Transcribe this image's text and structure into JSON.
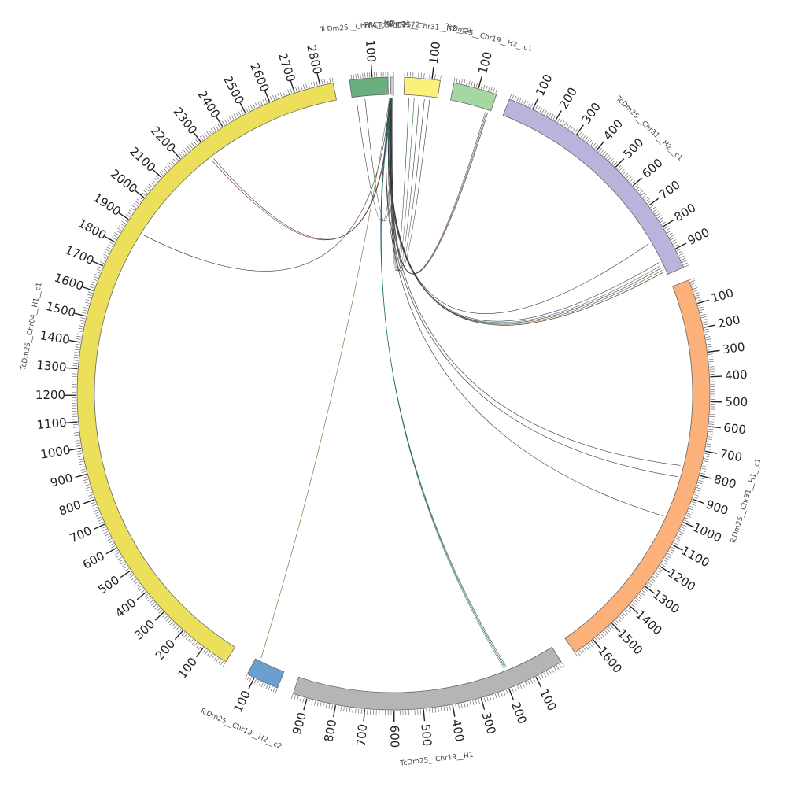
{
  "diagram": {
    "type": "circos",
    "center_marker_label": "PRCTcDm01172",
    "segments": [
      {
        "id": "chr04_h1_c1",
        "label": "TcDm25__Chr04__H1__c1",
        "length": 2850,
        "color": "#ECE05A",
        "major_ticks": [
          100,
          200,
          300,
          400,
          500,
          600,
          700,
          800,
          900,
          1000,
          1100,
          1200,
          1300,
          1400,
          1500,
          1600,
          1700,
          1800,
          1900,
          2000,
          2100,
          2200,
          2300,
          2400,
          2500,
          2600,
          2700,
          2800
        ]
      },
      {
        "id": "chr04_h2",
        "label": "TcDm25__Chr04__H2__c2",
        "length": 170,
        "color": "#6BAF7E",
        "major_ticks": [
          100
        ]
      },
      {
        "id": "prc",
        "label": "PRCTcDm01172",
        "length": 4,
        "color": "#CFCFCF",
        "major_ticks": []
      },
      {
        "id": "chr31_h2_c2",
        "label": "TcDm25__Chr31__H2__c2",
        "length": 130,
        "color": "#FAF07A",
        "major_ticks": [
          100
        ]
      },
      {
        "id": "chr19_h2_c1",
        "label": "TcDm25__Chr19__H2__c1",
        "length": 175,
        "color": "#A4D7A1",
        "major_ticks": [
          100
        ]
      },
      {
        "id": "chr31_h2_c1",
        "label": "TcDm25__Chr31__H2__c1",
        "length": 980,
        "color": "#B8B4DB",
        "major_ticks": [
          100,
          200,
          300,
          400,
          500,
          600,
          700,
          800,
          900
        ]
      },
      {
        "id": "chr31_h1_c1",
        "label": "TcDm25__Chr31__H1__c1",
        "length": 1690,
        "color": "#FCB07A",
        "major_ticks": [
          100,
          200,
          300,
          400,
          500,
          600,
          700,
          800,
          900,
          1000,
          1100,
          1200,
          1300,
          1400,
          1500,
          1600
        ]
      },
      {
        "id": "chr19_h1",
        "label": "TcDm25__Chr19__H1",
        "length": 950,
        "color": "#B5B5B5",
        "major_ticks": [
          100,
          200,
          300,
          400,
          500,
          600,
          700,
          800,
          900
        ]
      },
      {
        "id": "chr19_h2_c2",
        "label": "TcDm25__Chr19__H2__c2",
        "length": 130,
        "color": "#6A9FCF",
        "major_ticks": [
          100
        ]
      }
    ],
    "links": [
      {
        "seg": "chr04_h1_c1",
        "pos": 1880,
        "color": "#333333"
      },
      {
        "seg": "chr04_h1_c1",
        "pos": 2290,
        "color": "#8A2A2A"
      },
      {
        "seg": "chr04_h1_c1",
        "pos": 2300,
        "color": "#333333"
      },
      {
        "seg": "chr04_h2",
        "pos": 20,
        "color": "#333333"
      },
      {
        "seg": "chr04_h2",
        "pos": 60,
        "color": "#333333"
      },
      {
        "seg": "chr31_h2_c2",
        "pos": 20,
        "color": "#333333"
      },
      {
        "seg": "chr31_h2_c2",
        "pos": 40,
        "color": "#2A6A2A"
      },
      {
        "seg": "chr31_h2_c2",
        "pos": 60,
        "color": "#333333"
      },
      {
        "seg": "chr31_h2_c2",
        "pos": 80,
        "color": "#333333"
      },
      {
        "seg": "chr31_h2_c2",
        "pos": 100,
        "color": "#333333"
      },
      {
        "seg": "chr19_h2_c1",
        "pos": 155,
        "color": "#8A2A2A"
      },
      {
        "seg": "chr19_h2_c1",
        "pos": 160,
        "color": "#2A5A8A"
      },
      {
        "seg": "chr19_h2_c1",
        "pos": 165,
        "color": "#333333"
      },
      {
        "seg": "chr31_h2_c1",
        "pos": 830,
        "color": "#333333"
      },
      {
        "seg": "chr31_h2_c1",
        "pos": 920,
        "color": "#333333"
      },
      {
        "seg": "chr31_h2_c1",
        "pos": 935,
        "color": "#2A6A8A"
      },
      {
        "seg": "chr31_h2_c1",
        "pos": 945,
        "color": "#333333"
      },
      {
        "seg": "chr31_h2_c1",
        "pos": 955,
        "color": "#8A5A2A"
      },
      {
        "seg": "chr31_h2_c1",
        "pos": 965,
        "color": "#333333"
      },
      {
        "seg": "chr31_h1_c1",
        "pos": 780,
        "color": "#333333"
      },
      {
        "seg": "chr31_h1_c1",
        "pos": 830,
        "color": "#333333"
      },
      {
        "seg": "chr31_h1_c1",
        "pos": 1010,
        "color": "#333333"
      },
      {
        "seg": "chr19_h1",
        "pos": 180,
        "color": "#2A6A8A"
      },
      {
        "seg": "chr19_h1",
        "pos": 185,
        "color": "#333333"
      },
      {
        "seg": "chr19_h1",
        "pos": 190,
        "color": "#2A8A6A"
      },
      {
        "seg": "chr19_h2_c2",
        "pos": 110,
        "color": "#6A6A2A"
      }
    ]
  }
}
